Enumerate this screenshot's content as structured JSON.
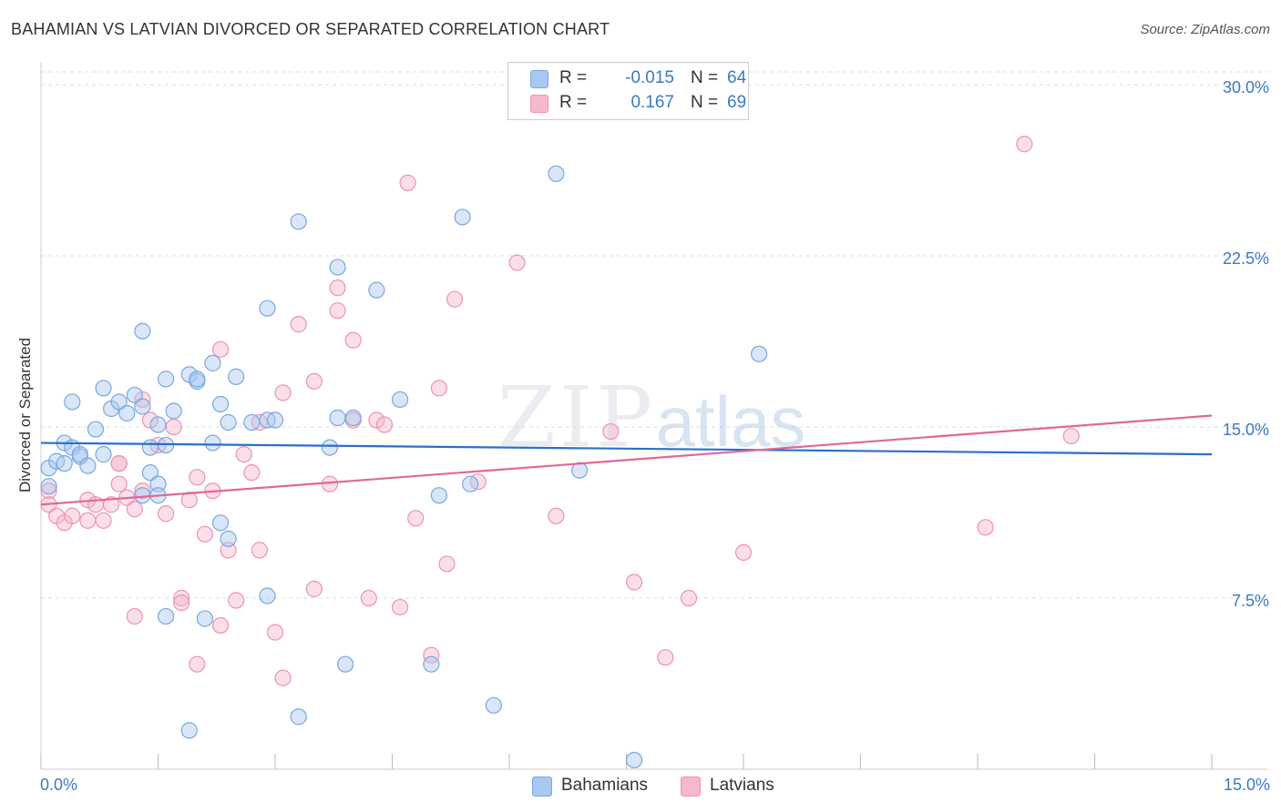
{
  "title": "BAHAMIAN VS LATVIAN DIVORCED OR SEPARATED CORRELATION CHART",
  "source": "Source: ZipAtlas.com",
  "watermark": {
    "zip": "ZIP",
    "atlas": "atlas"
  },
  "legend": {
    "rows": [
      {
        "r_label": "R =",
        "r_value": "-0.015",
        "n_label": "N =",
        "n_value": "64"
      },
      {
        "r_label": "R =",
        "r_value": "0.167",
        "n_label": "N =",
        "n_value": "69"
      }
    ]
  },
  "bottom_legend": [
    "Bahamians",
    "Latvians"
  ],
  "colors": {
    "bahamians_fill": "#a9c8f0",
    "bahamians_stroke": "#7aa7e0",
    "bahamians_line": "#2a6fcc",
    "latvians_fill": "#f5b8cc",
    "latvians_stroke": "#ee93b3",
    "latvians_line": "#e06898",
    "tick_label": "#3c78c8",
    "grid": "#dddddd"
  },
  "chart_data": {
    "type": "scatter",
    "title": "BAHAMIAN VS LATVIAN DIVORCED OR SEPARATED CORRELATION CHART",
    "xlabel": "",
    "ylabel": "Divorced or Separated",
    "xlim": [
      0,
      15
    ],
    "ylim": [
      0,
      31
    ],
    "x_tick_labels": [
      "0.0%",
      "15.0%"
    ],
    "y_ticks": [
      7.5,
      15,
      22.5,
      30
    ],
    "y_tick_labels": [
      "7.5%",
      "15.0%",
      "22.5%",
      "30.0%"
    ],
    "grid": "horizontal dashed",
    "series": [
      {
        "name": "Bahamians",
        "r": -0.015,
        "n": 64,
        "trend": {
          "x": [
            0,
            15
          ],
          "y": [
            14.3,
            13.8
          ]
        },
        "points": [
          [
            0.1,
            12.4
          ],
          [
            0.1,
            13.2
          ],
          [
            0.2,
            13.5
          ],
          [
            0.3,
            13.4
          ],
          [
            0.3,
            14.3
          ],
          [
            0.4,
            16.1
          ],
          [
            0.4,
            14.1
          ],
          [
            0.5,
            13.7
          ],
          [
            0.5,
            13.8
          ],
          [
            0.6,
            13.3
          ],
          [
            0.7,
            14.9
          ],
          [
            0.8,
            16.7
          ],
          [
            0.8,
            13.8
          ],
          [
            0.9,
            15.8
          ],
          [
            1.0,
            16.1
          ],
          [
            1.1,
            15.6
          ],
          [
            1.2,
            16.4
          ],
          [
            1.3,
            15.9
          ],
          [
            1.3,
            19.2
          ],
          [
            1.4,
            13.0
          ],
          [
            1.4,
            14.1
          ],
          [
            1.5,
            12.5
          ],
          [
            1.6,
            17.1
          ],
          [
            1.5,
            15.1
          ],
          [
            1.6,
            14.2
          ],
          [
            1.7,
            15.7
          ],
          [
            1.9,
            17.3
          ],
          [
            2.0,
            17.0
          ],
          [
            2.0,
            17.1
          ],
          [
            2.2,
            17.8
          ],
          [
            2.2,
            14.3
          ],
          [
            2.3,
            16.0
          ],
          [
            2.4,
            15.2
          ],
          [
            2.3,
            10.8
          ],
          [
            2.5,
            17.2
          ],
          [
            2.7,
            15.2
          ],
          [
            2.9,
            20.2
          ],
          [
            2.9,
            15.3
          ],
          [
            3.0,
            15.3
          ],
          [
            3.3,
            24.0
          ],
          [
            3.7,
            14.1
          ],
          [
            3.8,
            15.4
          ],
          [
            3.8,
            22.0
          ],
          [
            4.0,
            15.4
          ],
          [
            4.3,
            21.0
          ],
          [
            4.6,
            16.2
          ],
          [
            5.1,
            12.0
          ],
          [
            5.4,
            24.2
          ],
          [
            5.5,
            12.5
          ],
          [
            5.8,
            2.8
          ],
          [
            6.6,
            26.1
          ],
          [
            6.9,
            13.1
          ],
          [
            7.6,
            0.4
          ],
          [
            9.2,
            18.2
          ],
          [
            1.3,
            12.0
          ],
          [
            1.5,
            12.0
          ],
          [
            1.6,
            6.7
          ],
          [
            2.1,
            6.6
          ],
          [
            2.4,
            10.1
          ],
          [
            2.9,
            7.6
          ],
          [
            3.3,
            2.3
          ],
          [
            3.9,
            4.6
          ],
          [
            5.0,
            4.6
          ],
          [
            1.9,
            1.7
          ]
        ]
      },
      {
        "name": "Latvians",
        "r": 0.167,
        "n": 69,
        "trend": {
          "x": [
            0,
            15
          ],
          "y": [
            11.6,
            15.5
          ]
        },
        "points": [
          [
            0.1,
            12.2
          ],
          [
            0.1,
            11.6
          ],
          [
            0.2,
            11.1
          ],
          [
            0.3,
            10.8
          ],
          [
            0.4,
            11.1
          ],
          [
            0.6,
            11.8
          ],
          [
            0.6,
            10.9
          ],
          [
            0.7,
            11.6
          ],
          [
            0.8,
            10.9
          ],
          [
            0.9,
            11.6
          ],
          [
            1.0,
            12.5
          ],
          [
            1.0,
            13.4
          ],
          [
            1.1,
            11.9
          ],
          [
            1.2,
            11.4
          ],
          [
            1.3,
            16.2
          ],
          [
            1.3,
            12.2
          ],
          [
            1.4,
            15.3
          ],
          [
            1.5,
            14.2
          ],
          [
            1.6,
            11.2
          ],
          [
            1.7,
            15.0
          ],
          [
            1.8,
            7.5
          ],
          [
            1.8,
            7.3
          ],
          [
            1.9,
            11.8
          ],
          [
            2.0,
            12.8
          ],
          [
            2.1,
            10.3
          ],
          [
            2.2,
            12.2
          ],
          [
            2.3,
            18.4
          ],
          [
            2.3,
            6.3
          ],
          [
            2.4,
            9.6
          ],
          [
            2.5,
            7.4
          ],
          [
            2.6,
            13.8
          ],
          [
            2.7,
            13.0
          ],
          [
            2.8,
            9.6
          ],
          [
            2.8,
            15.2
          ],
          [
            3.1,
            16.5
          ],
          [
            3.3,
            19.5
          ],
          [
            3.5,
            17.0
          ],
          [
            3.7,
            12.5
          ],
          [
            3.8,
            21.1
          ],
          [
            3.8,
            20.1
          ],
          [
            4.0,
            18.8
          ],
          [
            4.0,
            15.3
          ],
          [
            4.3,
            15.3
          ],
          [
            4.4,
            15.1
          ],
          [
            4.7,
            25.7
          ],
          [
            4.8,
            11.0
          ],
          [
            5.1,
            16.7
          ],
          [
            5.2,
            9.0
          ],
          [
            5.3,
            20.6
          ],
          [
            5.6,
            12.6
          ],
          [
            6.1,
            22.2
          ],
          [
            6.6,
            11.1
          ],
          [
            7.3,
            14.8
          ],
          [
            7.6,
            8.2
          ],
          [
            8.0,
            4.9
          ],
          [
            8.3,
            7.5
          ],
          [
            9.0,
            9.5
          ],
          [
            12.1,
            10.6
          ],
          [
            12.6,
            27.4
          ],
          [
            13.2,
            14.6
          ],
          [
            1.0,
            13.4
          ],
          [
            1.2,
            6.7
          ],
          [
            2.0,
            4.6
          ],
          [
            3.0,
            6.0
          ],
          [
            3.1,
            4.0
          ],
          [
            3.5,
            7.9
          ],
          [
            4.2,
            7.5
          ],
          [
            4.6,
            7.1
          ],
          [
            5.0,
            5.0
          ]
        ]
      }
    ]
  }
}
